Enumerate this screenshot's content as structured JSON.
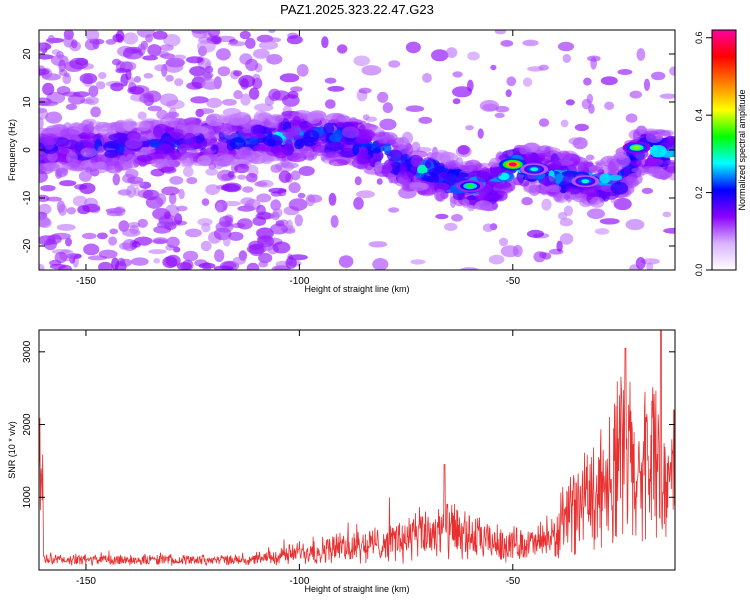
{
  "title": "PAZ1.2025.323.22.47.G23",
  "chart_data": [
    {
      "type": "heatmap",
      "title": "PAZ1.2025.323.22.47.G23",
      "xlabel": "Height of straight line (km)",
      "ylabel": "Frequency (Hz)",
      "xlim": [
        -161,
        -12
      ],
      "ylim": [
        -25,
        25
      ],
      "xticks": [
        -150,
        -100,
        -50
      ],
      "yticks": [
        -20,
        -10,
        0,
        10,
        20
      ],
      "colorbar": {
        "label": "Normalized spectral amplitude",
        "range": [
          0.0,
          0.62
        ],
        "ticks": [
          0.0,
          0.2,
          0.4,
          0.6
        ],
        "colormap": [
          "#ffffff",
          "#d9b3ff",
          "#8b00ff",
          "#0000ff",
          "#00ffff",
          "#00ff00",
          "#ffff00",
          "#ff8000",
          "#ff0000",
          "#ff00a0"
        ]
      },
      "ridge": [
        {
          "x": -160,
          "f": 0
        },
        {
          "x": -100,
          "f": 3
        },
        {
          "x": -88,
          "f": 2
        },
        {
          "x": -75,
          "f": -3
        },
        {
          "x": -62,
          "f": -7
        },
        {
          "x": -55,
          "f": -8
        },
        {
          "x": -50,
          "f": -3
        },
        {
          "x": -40,
          "f": -5
        },
        {
          "x": -30,
          "f": -7
        },
        {
          "x": -25,
          "f": -6
        },
        {
          "x": -20,
          "f": 0
        },
        {
          "x": -12,
          "f": -1
        }
      ],
      "hotspots": [
        {
          "x": -50,
          "f": -3,
          "amp": 0.62
        },
        {
          "x": -60,
          "f": -7.5,
          "amp": 0.35
        },
        {
          "x": -21,
          "f": 0.5,
          "amp": 0.4
        },
        {
          "x": -33,
          "f": -6.5,
          "amp": 0.3
        },
        {
          "x": -45,
          "f": -4,
          "amp": 0.3
        }
      ]
    },
    {
      "type": "line",
      "xlabel": "Height of straight line (km)",
      "ylabel": "SNR (10 * v/v)",
      "xlim": [
        -161,
        -12
      ],
      "ylim": [
        0,
        3300
      ],
      "xticks": [
        -150,
        -100,
        -50
      ],
      "yticks": [
        1000,
        2000,
        3000
      ],
      "color": "#e83030",
      "envelope": [
        {
          "x": -160,
          "base": 120,
          "amp": 120
        },
        {
          "x": -110,
          "base": 120,
          "amp": 110
        },
        {
          "x": -100,
          "base": 200,
          "amp": 250
        },
        {
          "x": -80,
          "base": 300,
          "amp": 400
        },
        {
          "x": -70,
          "base": 400,
          "amp": 600
        },
        {
          "x": -65,
          "base": 400,
          "amp": 700
        },
        {
          "x": -55,
          "base": 300,
          "amp": 400
        },
        {
          "x": -45,
          "base": 300,
          "amp": 350
        },
        {
          "x": -40,
          "base": 350,
          "amp": 500
        },
        {
          "x": -35,
          "base": 700,
          "amp": 900
        },
        {
          "x": -28,
          "base": 1000,
          "amp": 1500
        },
        {
          "x": -24,
          "base": 1200,
          "amp": 2100
        },
        {
          "x": -20,
          "base": 900,
          "amp": 1500
        },
        {
          "x": -17,
          "base": 1300,
          "amp": 2100
        },
        {
          "x": -14,
          "base": 900,
          "amp": 1000
        },
        {
          "x": -12,
          "base": 1200,
          "amp": 1000
        }
      ],
      "peaks": [
        {
          "x": -23.6,
          "y": 3050
        },
        {
          "x": -15.3,
          "y": 3300
        },
        {
          "x": -12.3,
          "y": 2200
        },
        {
          "x": -66,
          "y": 1450
        }
      ]
    }
  ]
}
